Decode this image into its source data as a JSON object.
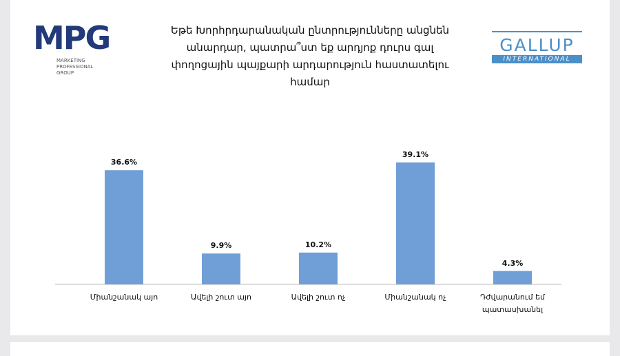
{
  "logos": {
    "mpg": "MPG",
    "mpg_subtitle": "MARKETING PROFESSIONAL GROUP",
    "gallup": "GALLUP",
    "gallup_sub": "INTERNATIONAL"
  },
  "chart_data": {
    "type": "bar",
    "title": "Եթե Խորհրդարանական ընտրությունները անցնեն անարդար, պատրա՞ստ եք արդյոք դուրս գալ փողոցային պայքարի արդարություն հաստատելու համար",
    "categories": [
      "Միանշանակ այո",
      "Ավելի շուտ այո",
      "Ավելի շուտ ոչ",
      "Միանշանակ ոչ",
      "Դժվարանում եմ պատասխանել"
    ],
    "values": [
      36.6,
      9.9,
      10.2,
      39.1,
      4.3
    ],
    "value_labels": [
      "36.6%",
      "9.9%",
      "10.2%",
      "39.1%",
      "4.3%"
    ],
    "color": "#6f9fd6"
  }
}
